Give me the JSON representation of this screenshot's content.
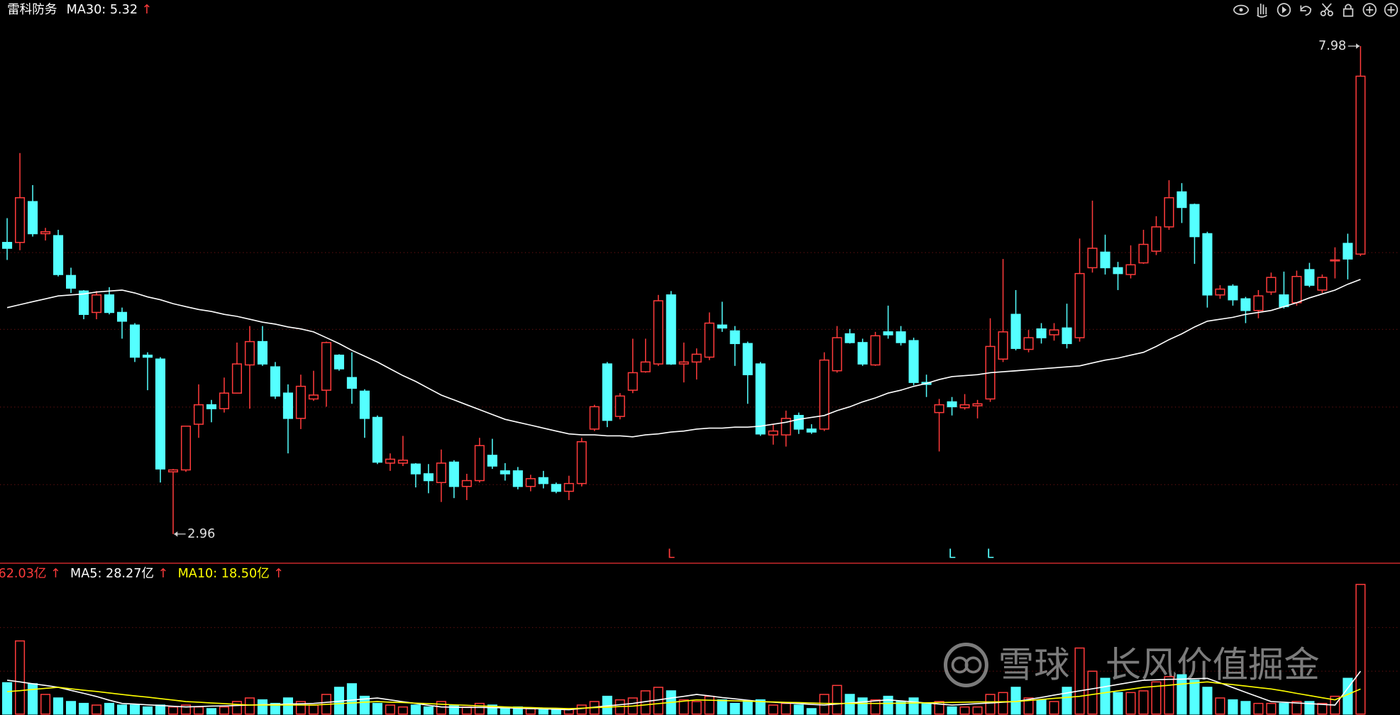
{
  "chart_data": [
    {
      "type": "candlestick",
      "title": "雷科防务",
      "arrow": "↑",
      "up_color": "#ff3b3b",
      "down_color": "#54ffff",
      "ylim": [
        2.66,
        8.27
      ],
      "open": [
        5.96,
        5.96,
        6.38,
        6.05,
        6.03,
        5.62,
        5.46,
        5.24,
        5.42,
        5.24,
        5.11,
        4.8,
        4.76,
        3.6,
        3.62,
        4.09,
        4.29,
        4.25,
        4.41,
        4.7,
        4.94,
        4.68,
        4.41,
        4.15,
        4.35,
        4.44,
        4.8,
        4.57,
        4.43,
        4.16,
        3.69,
        3.69,
        3.68,
        3.58,
        3.49,
        3.7,
        3.45,
        3.51,
        3.77,
        3.61,
        3.61,
        3.45,
        3.54,
        3.47,
        3.4,
        3.48,
        4.04,
        4.71,
        4.17,
        4.44,
        4.63,
        4.71,
        5.42,
        4.71,
        4.73,
        4.78,
        5.11,
        5.05,
        4.92,
        4.71,
        3.98,
        3.98,
        4.18,
        4.04,
        4.04,
        4.64,
        5.02,
        4.93,
        4.7,
        5.04,
        5.04,
        4.95,
        4.52,
        4.21,
        4.32,
        4.26,
        4.28,
        4.35,
        4.76,
        5.22,
        4.86,
        5.07,
        5.01,
        5.08,
        4.98,
        5.7,
        5.86,
        5.7,
        5.63,
        5.75,
        5.87,
        6.12,
        6.48,
        6.35,
        6.05,
        5.42,
        5.51,
        5.38,
        5.26,
        5.45,
        5.42,
        5.34,
        5.68,
        5.47,
        5.77,
        5.95,
        5.84
      ],
      "high": [
        6.21,
        6.88,
        6.55,
        6.11,
        6.09,
        5.7,
        5.47,
        5.46,
        5.5,
        5.29,
        5.13,
        4.83,
        4.78,
        3.63,
        4.07,
        4.5,
        4.34,
        4.57,
        4.93,
        5.1,
        5.1,
        4.73,
        4.5,
        4.6,
        4.64,
        4.94,
        4.81,
        4.83,
        4.45,
        4.18,
        3.79,
        3.97,
        3.69,
        3.68,
        3.83,
        3.72,
        3.58,
        3.95,
        3.94,
        3.69,
        3.65,
        3.57,
        3.61,
        3.49,
        3.56,
        3.95,
        4.29,
        4.73,
        4.41,
        4.97,
        4.97,
        5.42,
        5.46,
        4.93,
        4.87,
        5.24,
        5.35,
        5.1,
        4.94,
        4.73,
        4.09,
        4.23,
        4.21,
        4.09,
        4.83,
        5.1,
        5.07,
        4.97,
        5.04,
        5.31,
        5.1,
        4.98,
        4.6,
        4.35,
        4.37,
        4.4,
        4.34,
        5.18,
        5.79,
        5.47,
        5.06,
        5.13,
        5.13,
        5.33,
        6.0,
        6.39,
        6.04,
        5.76,
        5.93,
        6.09,
        6.23,
        6.6,
        6.57,
        6.36,
        6.07,
        5.52,
        5.53,
        5.4,
        5.47,
        5.65,
        5.66,
        5.67,
        5.75,
        5.63,
        5.91,
        6.05,
        7.98
      ],
      "low": [
        5.78,
        5.88,
        6.02,
        5.98,
        5.61,
        5.44,
        5.17,
        5.17,
        5.22,
        4.97,
        4.73,
        4.44,
        3.49,
        2.96,
        3.6,
        3.95,
        4.11,
        4.21,
        4.41,
        4.25,
        4.69,
        4.35,
        3.79,
        4.04,
        4.33,
        4.27,
        4.64,
        4.3,
        3.95,
        3.68,
        3.61,
        3.66,
        3.44,
        3.38,
        3.29,
        3.33,
        3.31,
        3.49,
        3.63,
        3.51,
        3.42,
        3.4,
        3.43,
        3.38,
        3.31,
        3.45,
        4.02,
        4.06,
        4.14,
        4.41,
        4.62,
        4.69,
        4.7,
        4.52,
        4.55,
        4.75,
        5.04,
        4.69,
        4.3,
        3.97,
        3.88,
        3.86,
        3.99,
        3.99,
        4.02,
        4.62,
        4.92,
        4.69,
        4.69,
        4.97,
        4.9,
        4.49,
        4.37,
        3.81,
        4.18,
        4.24,
        4.15,
        4.32,
        4.73,
        4.85,
        4.83,
        4.92,
        4.95,
        4.87,
        4.94,
        5.65,
        5.63,
        5.47,
        5.59,
        5.74,
        5.83,
        6.09,
        6.16,
        5.74,
        5.29,
        5.38,
        5.31,
        5.13,
        5.18,
        5.42,
        5.28,
        5.31,
        5.5,
        5.44,
        5.59,
        5.58,
        5.82
      ],
      "close": [
        5.9,
        6.42,
        6.05,
        6.07,
        5.63,
        5.49,
        5.22,
        5.42,
        5.24,
        5.15,
        4.78,
        4.78,
        3.63,
        3.62,
        4.07,
        4.29,
        4.25,
        4.41,
        4.71,
        4.94,
        4.71,
        4.38,
        4.15,
        4.48,
        4.39,
        4.93,
        4.66,
        4.46,
        4.15,
        3.7,
        3.73,
        3.72,
        3.58,
        3.51,
        3.69,
        3.45,
        3.51,
        3.87,
        3.66,
        3.58,
        3.45,
        3.53,
        3.48,
        3.4,
        3.48,
        3.91,
        4.27,
        4.13,
        4.38,
        4.62,
        4.73,
        5.36,
        4.71,
        4.73,
        4.81,
        5.13,
        5.08,
        4.92,
        4.6,
        3.99,
        4.02,
        4.15,
        4.04,
        4.01,
        4.75,
        4.98,
        4.93,
        4.71,
        5.0,
        5.01,
        4.93,
        4.52,
        4.5,
        4.29,
        4.27,
        4.29,
        4.3,
        4.89,
        5.04,
        4.87,
        4.98,
        4.98,
        5.06,
        4.92,
        5.64,
        5.9,
        5.7,
        5.64,
        5.73,
        5.94,
        6.12,
        6.42,
        6.32,
        6.02,
        5.42,
        5.48,
        5.37,
        5.26,
        5.41,
        5.6,
        5.3,
        5.61,
        5.52,
        5.6,
        5.78,
        5.79,
        7.67
      ],
      "series": [
        {
          "name": "MA30: 5.32",
          "color": "#ffffff",
          "values": [
            5.29,
            5.32,
            5.35,
            5.38,
            5.41,
            5.42,
            5.43,
            5.45,
            5.46,
            5.47,
            5.44,
            5.4,
            5.37,
            5.33,
            5.3,
            5.27,
            5.25,
            5.22,
            5.2,
            5.17,
            5.14,
            5.12,
            5.09,
            5.07,
            5.04,
            4.98,
            4.92,
            4.85,
            4.79,
            4.73,
            4.66,
            4.59,
            4.53,
            4.46,
            4.39,
            4.34,
            4.29,
            4.24,
            4.19,
            4.14,
            4.11,
            4.08,
            4.05,
            4.02,
            3.99,
            3.98,
            3.98,
            3.97,
            3.97,
            3.96,
            3.98,
            3.99,
            4.01,
            4.02,
            4.04,
            4.05,
            4.05,
            4.06,
            4.06,
            4.07,
            4.09,
            4.11,
            4.14,
            4.16,
            4.18,
            4.23,
            4.27,
            4.32,
            4.36,
            4.41,
            4.44,
            4.48,
            4.51,
            4.55,
            4.58,
            4.59,
            4.6,
            4.62,
            4.63,
            4.64,
            4.65,
            4.66,
            4.67,
            4.68,
            4.69,
            4.72,
            4.75,
            4.77,
            4.8,
            4.83,
            4.89,
            4.96,
            5.02,
            5.09,
            5.15,
            5.17,
            5.19,
            5.22,
            5.24,
            5.26,
            5.3,
            5.34,
            5.39,
            5.43,
            5.47,
            5.53,
            5.58
          ]
        }
      ],
      "markers": [
        "L",
        "L",
        "L"
      ],
      "watermark": "雪球：长风价值掘金"
    },
    {
      "type": "bar",
      "label": "62.03亿",
      "arrow": "↑",
      "ylim": [
        0,
        66.2
      ],
      "values": [
        15,
        35,
        14.5,
        9.4,
        7.7,
        6,
        5.1,
        4.3,
        5.1,
        4.3,
        4.3,
        3.4,
        4.3,
        3.4,
        4.3,
        3.4,
        2.6,
        3.4,
        6,
        7.7,
        6.8,
        5.1,
        7.7,
        6,
        4.3,
        9.4,
        12.8,
        14.5,
        8.5,
        5.1,
        4.3,
        3.4,
        4.3,
        3.4,
        6,
        4.3,
        3.4,
        5.1,
        4.3,
        2.6,
        3.4,
        2.6,
        2.6,
        2.6,
        2.6,
        4.3,
        6,
        8.5,
        6.8,
        7.7,
        11.1,
        12.8,
        11.1,
        6.8,
        6,
        8.5,
        6.8,
        5.1,
        6,
        6.8,
        4.3,
        5.1,
        4.3,
        2.6,
        9.4,
        13.7,
        9.4,
        7.7,
        6.8,
        8.5,
        6,
        7.7,
        5.1,
        6,
        3.4,
        3.4,
        3.4,
        9.4,
        10.3,
        12.8,
        7.7,
        6.8,
        6,
        12.8,
        31.6,
        20.5,
        17.1,
        10.3,
        10.3,
        11.1,
        15.4,
        17.9,
        18.8,
        16.2,
        12.8,
        7.7,
        6.8,
        6,
        5.1,
        5.1,
        5.1,
        6,
        6,
        5.1,
        8.5,
        17.1,
        62.03
      ],
      "series": [
        {
          "name": "MA5: 28.27亿",
          "color": "#ffffff",
          "values": [
            16.2,
            15.4,
            14.5,
            13.7,
            12.8,
            11.3,
            9.9,
            8.4,
            6.6,
            5.1,
            4.8,
            4.4,
            4.1,
            3.7,
            3.4,
            3.6,
            3.8,
            3.9,
            4.1,
            4.3,
            4.5,
            4.6,
            4.8,
            4.9,
            5.1,
            5.6,
            6.1,
            6.7,
            7.2,
            7.7,
            6.8,
            5.9,
            5.1,
            4.2,
            3.4,
            3.3,
            3.2,
            3.2,
            3.1,
            3.0,
            2.8,
            2.6,
            2.5,
            2.3,
            2.1,
            2.7,
            3.3,
            3.9,
            4.5,
            5.1,
            6.0,
            6.8,
            7.7,
            8.5,
            9.4,
            8.7,
            7.9,
            7.3,
            6.6,
            6.0,
            5.7,
            5.3,
            5.0,
            4.6,
            4.3,
            4.8,
            5.3,
            5.8,
            6.3,
            6.8,
            6.3,
            5.8,
            5.3,
            4.8,
            4.3,
            4.6,
            5.0,
            5.3,
            5.7,
            6.0,
            7.0,
            8.0,
            9.1,
            10.1,
            11.1,
            12.1,
            13.1,
            14.2,
            15.2,
            16.2,
            16.4,
            16.6,
            16.7,
            16.9,
            17.1,
            14.9,
            12.7,
            10.4,
            8.2,
            6.0,
            5.7,
            5.3,
            5.0,
            4.6,
            4.3,
            12.4,
            20.5
          ]
        },
        {
          "name": "MA10: 18.50亿",
          "color": "#ffff00",
          "values": [
            10.7,
            11.2,
            11.8,
            12.3,
            12.8,
            12.1,
            11.4,
            10.8,
            10.1,
            9.4,
            8.7,
            8.1,
            7.4,
            6.7,
            6.0,
            5.7,
            5.3,
            5.0,
            4.6,
            4.3,
            4.3,
            4.3,
            4.3,
            4.3,
            4.3,
            4.6,
            5.0,
            5.3,
            5.7,
            6.0,
            5.7,
            5.5,
            5.2,
            5.0,
            4.7,
            4.4,
            4.2,
            3.9,
            3.7,
            3.4,
            3.2,
            3.1,
            2.9,
            2.8,
            2.6,
            2.8,
            3.1,
            3.3,
            3.6,
            3.8,
            4.4,
            5.0,
            5.6,
            6.2,
            6.8,
            6.6,
            6.5,
            6.3,
            6.2,
            6.0,
            5.8,
            5.6,
            5.5,
            5.3,
            5.1,
            5.1,
            5.1,
            5.1,
            5.1,
            5.1,
            5.2,
            5.3,
            5.4,
            5.5,
            5.6,
            5.7,
            5.8,
            5.8,
            5.9,
            6.0,
            6.5,
            7.0,
            7.5,
            8.0,
            8.5,
            9.4,
            10.2,
            11.1,
            11.9,
            12.8,
            13.3,
            13.8,
            14.4,
            14.9,
            15.4,
            14.7,
            14.1,
            13.4,
            12.7,
            12.0,
            11.0,
            9.9,
            8.9,
            7.8,
            6.8,
            9.4,
            12.0
          ]
        }
      ]
    }
  ]
}
